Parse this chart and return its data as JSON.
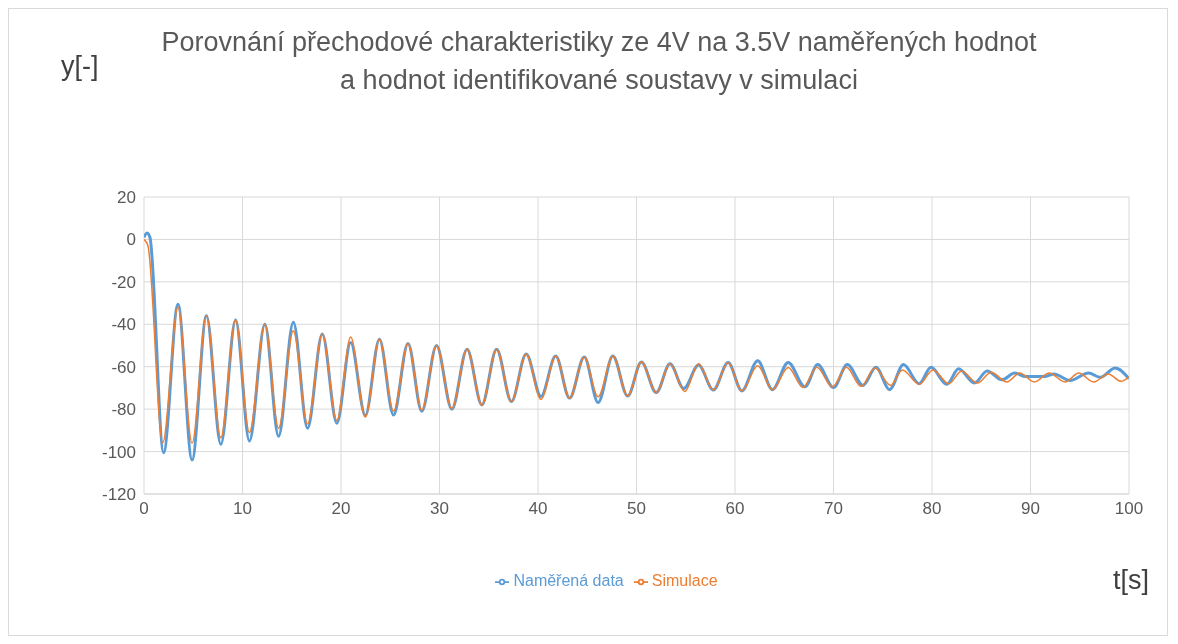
{
  "chart_data": {
    "type": "line",
    "title": "Porovnání přechodové charakteristiky ze 4V na 3.5V naměřených hodnot a hodnot identifikované soustavy v simulaci",
    "xlabel": "t[s]",
    "ylabel": "y[-]",
    "xlim": [
      0,
      100
    ],
    "xticks": [
      0,
      10,
      20,
      30,
      40,
      50,
      60,
      70,
      80,
      90,
      100
    ],
    "ylim": [
      -120,
      20
    ],
    "yticks": [
      -120,
      -100,
      -80,
      -60,
      -40,
      -20,
      0,
      20
    ],
    "grid": true,
    "legend": "bottom",
    "marker": "none",
    "line_style": "solid",
    "series": [
      {
        "name": "Naměřená data",
        "color": "#5b9bd5",
        "x": [
          0,
          0.3,
          0.6,
          1.99,
          3.45,
          4.88,
          6.34,
          7.8,
          9.3,
          10.7,
          12.27,
          13.66,
          15.16,
          16.6,
          18.1,
          19.58,
          20.98,
          22.47,
          23.9,
          25.33,
          26.8,
          28.2,
          29.7,
          31.25,
          32.8,
          34.3,
          35.8,
          37.3,
          38.8,
          40.3,
          41.8,
          43.2,
          44.7,
          46.1,
          47.6,
          49.1,
          50.5,
          52,
          53.4,
          54.8,
          56.3,
          57.8,
          59.3,
          60.7,
          62.3,
          63.8,
          65.4,
          67.1,
          68.4,
          70,
          71.4,
          73,
          74.3,
          75.7,
          77.1,
          78.7,
          79.9,
          81.5,
          82.7,
          84.3,
          85.6,
          87.1,
          88.4,
          89.5,
          91.5,
          92.4,
          94,
          95.9,
          97.1,
          98.6,
          100
        ],
        "values": [
          1,
          3,
          1,
          -100.5,
          -30.5,
          -104,
          -36,
          -96.6,
          -38,
          -95,
          -40,
          -92.8,
          -39,
          -89,
          -44.6,
          -86.6,
          -48.6,
          -83,
          -47,
          -82.8,
          -49,
          -81,
          -50,
          -80,
          -51.8,
          -78,
          -51.8,
          -76.4,
          -54,
          -74,
          -55,
          -74.8,
          -55.4,
          -76.9,
          -55,
          -73.8,
          -57.8,
          -72.2,
          -58.6,
          -70.3,
          -59.2,
          -71,
          -58,
          -71.4,
          -57.2,
          -70.8,
          -58,
          -69.5,
          -59,
          -69.8,
          -59,
          -68.8,
          -60.3,
          -70.8,
          -59,
          -68,
          -60.3,
          -68.3,
          -61,
          -67.7,
          -62,
          -66.2,
          -63,
          -64.6,
          -64.6,
          -63.4,
          -66.5,
          -63,
          -65,
          -60.6,
          -65.7
        ]
      },
      {
        "name": "Simulace",
        "color": "#ed7d31",
        "x": [
          0,
          0.4,
          1.9,
          3.45,
          4.88,
          6.34,
          7.8,
          9.3,
          10.7,
          12.27,
          13.66,
          15.16,
          16.6,
          18.1,
          19.58,
          20.98,
          22.47,
          23.9,
          25.33,
          26.8,
          28.2,
          29.7,
          31.25,
          32.8,
          34.3,
          35.8,
          37.3,
          38.8,
          40.3,
          41.8,
          43.2,
          44.7,
          46.1,
          47.6,
          49.1,
          50.5,
          52,
          53.4,
          54.9,
          56.3,
          57.8,
          59.3,
          60.7,
          62.3,
          63.8,
          65.4,
          66.9,
          68.3,
          69.9,
          71.3,
          72.8,
          74.2,
          75.8,
          77,
          78.7,
          80.1,
          81.7,
          83,
          84.6,
          86,
          87.6,
          88.9,
          90.4,
          91.9,
          93.5,
          94.9,
          96.4,
          97.9,
          99.2,
          100
        ],
        "values": [
          0,
          -3,
          -95.8,
          -32,
          -96,
          -36,
          -93.5,
          -38,
          -91,
          -40,
          -89,
          -43,
          -87,
          -44.6,
          -85.4,
          -46,
          -83.8,
          -47,
          -81,
          -49,
          -80.5,
          -50,
          -79.7,
          -51.8,
          -78,
          -51.8,
          -76.4,
          -54,
          -75.4,
          -55,
          -74.8,
          -55.4,
          -74.2,
          -55,
          -73.8,
          -57.8,
          -72.2,
          -58.6,
          -71.7,
          -58.6,
          -71,
          -58,
          -71.4,
          -59.5,
          -70.8,
          -60.4,
          -69.8,
          -60.3,
          -69.5,
          -60.3,
          -69.2,
          -60.6,
          -68.8,
          -61.5,
          -68.3,
          -61.5,
          -68,
          -62,
          -67.7,
          -62.6,
          -67.2,
          -63,
          -67.2,
          -63,
          -67.2,
          -63,
          -67.2,
          -63.4,
          -66.9,
          -64.6
        ]
      }
    ]
  }
}
